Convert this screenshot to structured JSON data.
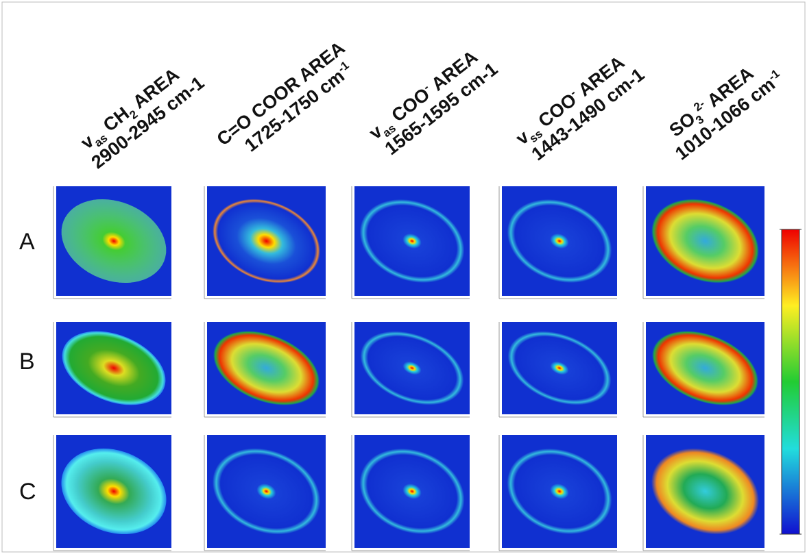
{
  "columns": [
    {
      "lines": [
        [
          "v",
          {
            "sub": "as"
          },
          " CH",
          {
            "sub": "2"
          },
          " AREA"
        ],
        [
          "2900-2945 cm-1"
        ]
      ]
    },
    {
      "lines": [
        [
          "C=O COOR  AREA"
        ],
        [
          "1725-1750 cm",
          {
            "sup": "-1"
          }
        ]
      ]
    },
    {
      "lines": [
        [
          "v",
          {
            "sub": "as"
          },
          " COO",
          {
            "sup": "-"
          },
          " AREA"
        ],
        [
          "1565-1595 cm-1"
        ]
      ]
    },
    {
      "lines": [
        [
          "v",
          {
            "sub": "ss"
          },
          "  COO",
          {
            "sup": "-"
          },
          " AREA"
        ],
        [
          "1443-1490 cm-1"
        ]
      ]
    },
    {
      "lines": [
        [
          "SO",
          {
            "sub": "3"
          },
          {
            "sup": "2-"
          },
          "  AREA"
        ],
        [
          "1010-1066 cm",
          {
            "sup": "-1"
          }
        ]
      ]
    }
  ],
  "rows": [
    "A",
    "B",
    "C"
  ]
}
